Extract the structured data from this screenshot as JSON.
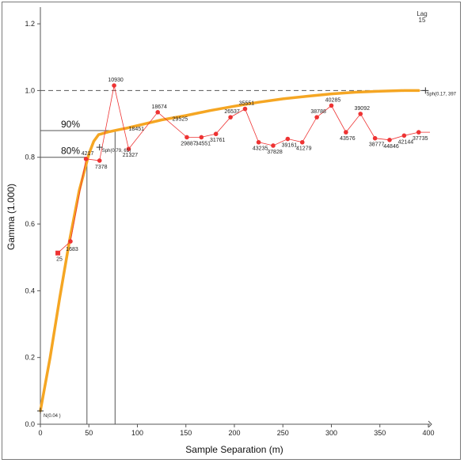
{
  "chart_data": {
    "type": "scatter",
    "title": "",
    "xlabel": "Sample Separation (m)",
    "ylabel": "Gamma (1.000)",
    "xlim": [
      0,
      400
    ],
    "ylim": [
      0,
      1.25
    ],
    "x_ticks": [
      "0",
      "50",
      "100",
      "150",
      "200",
      "250",
      "300",
      "350",
      "400"
    ],
    "y_ticks": [
      "0.0",
      "0.2",
      "0.4",
      "0.6",
      "0.8",
      "1.0",
      "1.2"
    ],
    "grid": false,
    "lag": {
      "title": "Lag",
      "value": "15"
    },
    "sill": 1.0,
    "experimental_points": [
      {
        "x": 18,
        "y": 0.513,
        "label": "25"
      },
      {
        "x": 31,
        "y": 0.548,
        "label": "1683"
      },
      {
        "x": 47,
        "y": 0.795,
        "label": "4217"
      },
      {
        "x": 61,
        "y": 0.79,
        "label": "7378"
      },
      {
        "x": 76,
        "y": 1.015,
        "label": "10930"
      },
      {
        "x": 91,
        "y": 0.825,
        "label": "21327"
      },
      {
        "x": 121,
        "y": 0.935,
        "label": "18674"
      },
      {
        "x": 151,
        "y": 0.86,
        "label": "29887"
      },
      {
        "x": 166,
        "y": 0.86,
        "label": "34551"
      },
      {
        "x": 181,
        "y": 0.87,
        "label": "31761"
      },
      {
        "x": 196,
        "y": 0.92,
        "label": "26537"
      },
      {
        "x": 211,
        "y": 0.945,
        "label": "35551"
      },
      {
        "x": 225,
        "y": 0.845,
        "label": "43235"
      },
      {
        "x": 240,
        "y": 0.835,
        "label": "37828"
      },
      {
        "x": 255,
        "y": 0.855,
        "label": "39161"
      },
      {
        "x": 270,
        "y": 0.845,
        "label": "41279"
      },
      {
        "x": 285,
        "y": 0.92,
        "label": "38788"
      },
      {
        "x": 300,
        "y": 0.955,
        "label": "40285"
      },
      {
        "x": 315,
        "y": 0.875,
        "label": "43576"
      },
      {
        "x": 330,
        "y": 0.93,
        "label": "39092"
      },
      {
        "x": 345,
        "y": 0.857,
        "label": "38777"
      },
      {
        "x": 360,
        "y": 0.852,
        "label": "44846"
      },
      {
        "x": 375,
        "y": 0.865,
        "label": "42144"
      },
      {
        "x": 390,
        "y": 0.875,
        "label": "37735"
      }
    ],
    "extra_labels": [
      {
        "x": 99,
        "y": 0.88,
        "label": "18451"
      },
      {
        "x": 144,
        "y": 0.91,
        "label": "29525"
      }
    ],
    "model_curve": {
      "nugget": 0.04,
      "x": [
        0,
        10,
        20,
        30,
        40,
        50,
        55,
        60,
        70,
        80,
        90,
        100,
        125,
        150,
        175,
        200,
        225,
        250,
        275,
        300,
        325,
        350,
        375,
        390
      ],
      "y": [
        0.04,
        0.2,
        0.38,
        0.55,
        0.7,
        0.81,
        0.848,
        0.868,
        0.876,
        0.882,
        0.888,
        0.895,
        0.912,
        0.925,
        0.94,
        0.953,
        0.965,
        0.975,
        0.983,
        0.99,
        0.995,
        0.998,
        1.0,
        1.0
      ]
    },
    "model_annotations": {
      "nugget_label": "N(0.04 )",
      "sph1_label": "Sph(0.79, 61)",
      "sph2_label": "Sph(0.17, 397"
    },
    "percent_lines": [
      {
        "label": "90%",
        "y": 0.88,
        "x": 77
      },
      {
        "label": "80%",
        "y": 0.8,
        "x": 48
      }
    ]
  }
}
